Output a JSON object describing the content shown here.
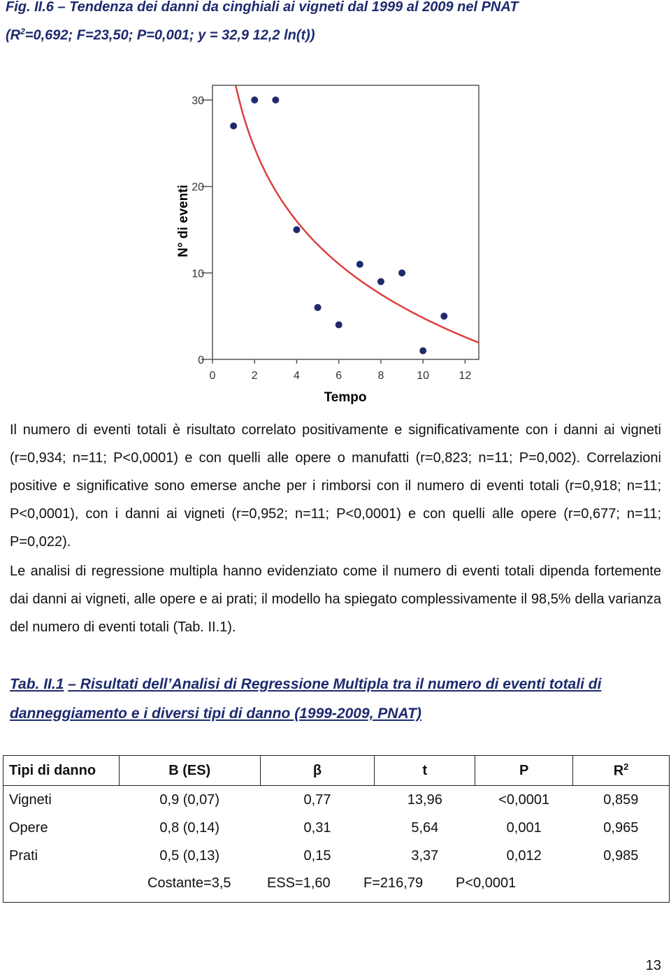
{
  "header": {
    "title_line1": "Fig. II.6 – Tendenza dei danni da cinghiali ai vigneti dal 1999 al 2009 nel PNAT",
    "title_line2": [
      "(R",
      "2",
      "=0,692; F=23,50; P=0,001; y = 32,9 12,2 ln(t))"
    ]
  },
  "chart_data": {
    "type": "scatter",
    "x_label": "Tempo",
    "y_label": "N° di eventi",
    "x": [
      1,
      2,
      3,
      4,
      5,
      6,
      7,
      8,
      9,
      10,
      11
    ],
    "series": [
      {
        "color": "#1f2a6b",
        "values": [
          27,
          30,
          30,
          15,
          6,
          4,
          11,
          9,
          10,
          1,
          5
        ]
      }
    ],
    "fit": {
      "intercept": 32.9,
      "slope": -12.2,
      "color": "#d9413f"
    },
    "xlim": [
      0,
      12.65
    ],
    "ylim": [
      0,
      31.7
    ],
    "xticks": [
      0,
      2,
      4,
      6,
      8,
      10,
      12
    ],
    "yticks": [
      0,
      10,
      20,
      30
    ]
  },
  "paragraphs": [
    "Il numero di eventi totali è risultato correlato positivamente e significativamente con i danni ai vigneti (r=0,934; n=11; P<0,0001) e con quelli alle opere o manufatti (r=0,823; n=11; P=0,002). Correlazioni positive e significative sono emerse anche per i rimborsi con il numero di eventi totali (r=0,918; n=11; P<0,0001), con i danni ai vigneti (r=0,952; n=11; P<0,0001) e con quelli alle opere (r=0,677; n=11; P=0,022).",
    "Le analisi di regressione multipla hanno evidenziato come il numero di eventi totali dipenda fortemente dai danni ai vigneti, alle opere e ai prati; il modello ha spiegato complessivamente il 98,5% della varianza del numero di eventi totali (Tab. II.1)."
  ],
  "table": {
    "caption_label": "Tab. II.1",
    "caption": "– Risultati dell’Analisi di Regressione Multipla tra il numero di eventi totali di danneggiamento e i diversi tipi di danno (1999-2009, PNAT)",
    "header": [
      "Tipi di danno",
      "B (ES)",
      "β",
      "t",
      "P",
      [
        "R",
        "2"
      ]
    ],
    "rows": [
      [
        "Vigneti",
        "0,9 (0,07)",
        "0,77",
        "13,96",
        "<0,0001",
        "0,859"
      ],
      [
        "Opere",
        "0,8 (0,14)",
        "0,31",
        "5,64",
        "0,001",
        "0,965"
      ],
      [
        "Prati",
        "0,5 (0,13)",
        "0,15",
        "3,37",
        "0,012",
        "0,985"
      ]
    ],
    "footer": [
      "Costante=3,5",
      "ESS=1,60",
      "F=216,79",
      "P<0,0001"
    ]
  },
  "page_number": "13"
}
